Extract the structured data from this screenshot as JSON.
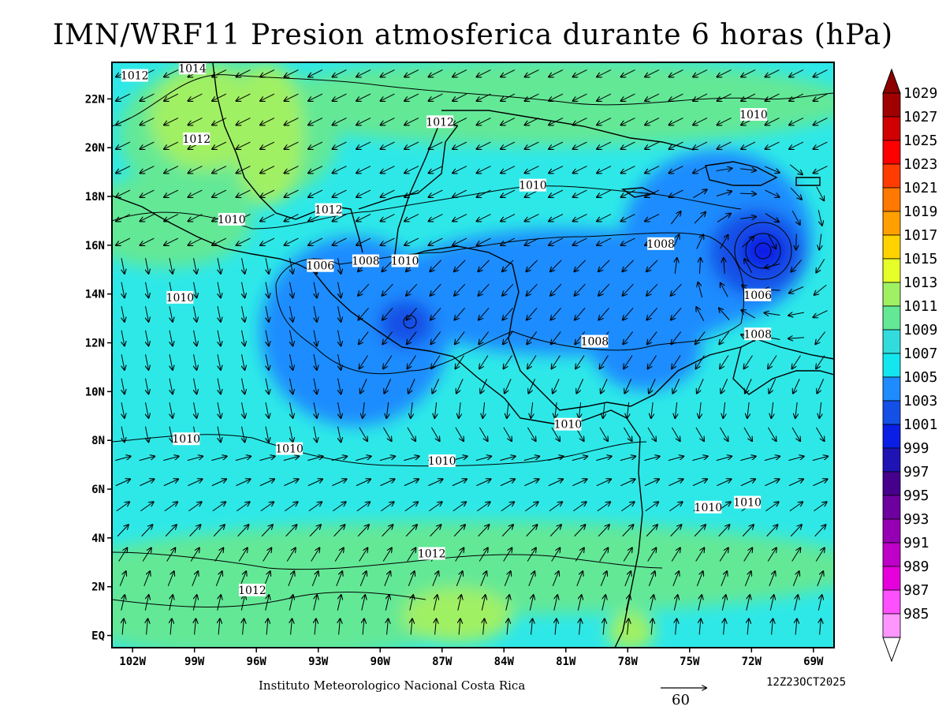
{
  "title": "IMN/WRF11 Presion atmosferica durante 6 horas (hPa)",
  "credit": "Instituto Meteorologico Nacional Costa Rica",
  "timestamp": "12Z23OCT2025",
  "wind_reference": {
    "value": "60"
  },
  "map": {
    "lon_range": [
      -103,
      -68
    ],
    "lat_range": [
      -0.5,
      23.5
    ],
    "lat_ticks": [
      {
        "value": 22,
        "label": "22N"
      },
      {
        "value": 20,
        "label": "20N"
      },
      {
        "value": 18,
        "label": "18N"
      },
      {
        "value": 16,
        "label": "16N"
      },
      {
        "value": 14,
        "label": "14N"
      },
      {
        "value": 12,
        "label": "12N"
      },
      {
        "value": 10,
        "label": "10N"
      },
      {
        "value": 8,
        "label": "8N"
      },
      {
        "value": 6,
        "label": "6N"
      },
      {
        "value": 4,
        "label": "4N"
      },
      {
        "value": 2,
        "label": "2N"
      },
      {
        "value": 0,
        "label": "EQ"
      }
    ],
    "lon_ticks": [
      {
        "value": -102,
        "label": "102W"
      },
      {
        "value": -99,
        "label": "99W"
      },
      {
        "value": -96,
        "label": "96W"
      },
      {
        "value": -93,
        "label": "93W"
      },
      {
        "value": -90,
        "label": "90W"
      },
      {
        "value": -87,
        "label": "87W"
      },
      {
        "value": -84,
        "label": "84W"
      },
      {
        "value": -81,
        "label": "81W"
      },
      {
        "value": -78,
        "label": "78W"
      },
      {
        "value": -75,
        "label": "75W"
      },
      {
        "value": -72,
        "label": "72W"
      },
      {
        "value": -69,
        "label": "69W"
      }
    ],
    "contour_labels": [
      {
        "text": "1012",
        "lon": -101.9,
        "lat": 22.9
      },
      {
        "text": "1014",
        "lon": -99.1,
        "lat": 23.2
      },
      {
        "text": "1012",
        "lon": -98.9,
        "lat": 20.3
      },
      {
        "text": "1010",
        "lon": -97.2,
        "lat": 17.0
      },
      {
        "text": "1012",
        "lon": -87.1,
        "lat": 21.0
      },
      {
        "text": "1010",
        "lon": -71.9,
        "lat": 21.3
      },
      {
        "text": "1010",
        "lon": -82.6,
        "lat": 18.4
      },
      {
        "text": "1012",
        "lon": -92.5,
        "lat": 17.4
      },
      {
        "text": "1008",
        "lon": -90.7,
        "lat": 15.3
      },
      {
        "text": "1006",
        "lon": -92.9,
        "lat": 15.1
      },
      {
        "text": "1010",
        "lon": -88.8,
        "lat": 15.3
      },
      {
        "text": "1008",
        "lon": -76.4,
        "lat": 16.0
      },
      {
        "text": "1006",
        "lon": -71.7,
        "lat": 13.9
      },
      {
        "text": "1008",
        "lon": -71.7,
        "lat": 12.3
      },
      {
        "text": "1008",
        "lon": -79.6,
        "lat": 12.0
      },
      {
        "text": "1010",
        "lon": -99.7,
        "lat": 13.8
      },
      {
        "text": "1010",
        "lon": -99.4,
        "lat": 8.0
      },
      {
        "text": "1010",
        "lon": -94.4,
        "lat": 7.6
      },
      {
        "text": "1010",
        "lon": -87.0,
        "lat": 7.1
      },
      {
        "text": "1010",
        "lon": -80.9,
        "lat": 8.6
      },
      {
        "text": "1010",
        "lon": -74.1,
        "lat": 5.2
      },
      {
        "text": "1010",
        "lon": -72.2,
        "lat": 5.4
      },
      {
        "text": "1012",
        "lon": -87.5,
        "lat": 3.3
      },
      {
        "text": "1012",
        "lon": -96.2,
        "lat": 1.8
      }
    ]
  },
  "legend": {
    "levels": [
      {
        "label": "1029",
        "color": "#a00000"
      },
      {
        "label": "1027",
        "color": "#d00000"
      },
      {
        "label": "1025",
        "color": "#ff0000"
      },
      {
        "label": "1023",
        "color": "#ff3c00"
      },
      {
        "label": "1021",
        "color": "#ff7800"
      },
      {
        "label": "1019",
        "color": "#ffa000"
      },
      {
        "label": "1017",
        "color": "#ffd200"
      },
      {
        "label": "1015",
        "color": "#e6ff28"
      },
      {
        "label": "1013",
        "color": "#a0f064"
      },
      {
        "label": "1011",
        "color": "#64e896"
      },
      {
        "label": "1009",
        "color": "#32dcdc"
      },
      {
        "label": "1007",
        "color": "#14e6f0"
      },
      {
        "label": "1005",
        "color": "#1e8cff"
      },
      {
        "label": "1003",
        "color": "#1450e6"
      },
      {
        "label": "1001",
        "color": "#0a1ee6"
      },
      {
        "label": "999",
        "color": "#1e14b4"
      },
      {
        "label": "997",
        "color": "#46008c"
      },
      {
        "label": "995",
        "color": "#6e00a0"
      },
      {
        "label": "993",
        "color": "#9600b4"
      },
      {
        "label": "991",
        "color": "#be00c8"
      },
      {
        "label": "989",
        "color": "#e600dc"
      },
      {
        "label": "987",
        "color": "#ff50ff"
      },
      {
        "label": "985",
        "color": "#ff96ff"
      }
    ],
    "top_color": "#8c0000",
    "bottom_color": "#ffffff"
  }
}
